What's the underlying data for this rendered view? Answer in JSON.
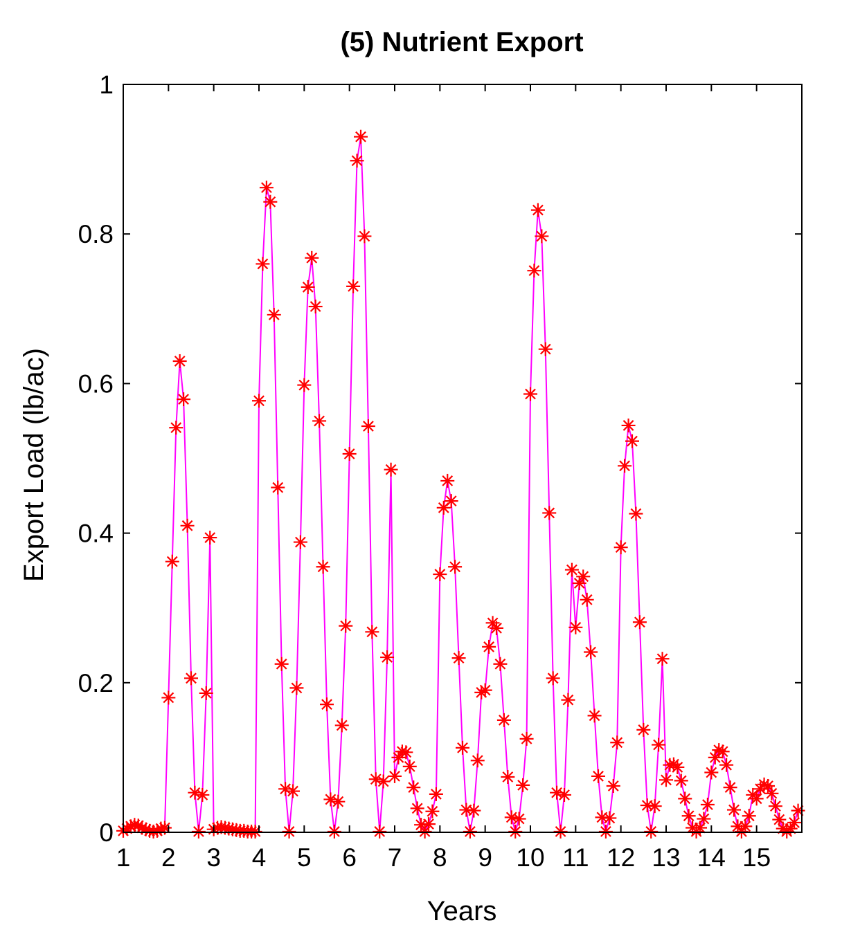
{
  "chart_data": {
    "type": "line",
    "title": "(5) Nutrient Export",
    "xlabel": "Years",
    "ylabel": "Export Load (lb/ac)",
    "xlim": [
      1,
      16
    ],
    "ylim": [
      0,
      1
    ],
    "x_ticks": [
      1,
      2,
      3,
      4,
      5,
      6,
      7,
      8,
      9,
      10,
      11,
      12,
      13,
      14,
      15
    ],
    "x_tick_labels": [
      "1",
      "2",
      "3",
      "4",
      "5",
      "6",
      "7",
      "8",
      "9",
      "10",
      "11",
      "12",
      "13",
      "14",
      "15"
    ],
    "y_ticks": [
      0,
      0.2,
      0.4,
      0.6,
      0.8,
      1
    ],
    "y_tick_labels": [
      "0",
      "0.2",
      "0.4",
      "0.6",
      "0.8",
      "1"
    ],
    "grid": false,
    "line_color": "#ff00ff",
    "marker_color": "#ff0000",
    "marker": "asterisk",
    "series": [
      {
        "x": [
          1.0,
          1.083,
          1.167,
          1.25,
          1.333,
          1.417,
          1.5,
          1.583,
          1.667,
          1.75,
          1.833,
          1.917,
          2.0,
          2.083,
          2.167,
          2.25,
          2.333,
          2.417,
          2.5,
          2.583,
          2.667,
          2.75,
          2.833,
          2.917,
          3.0,
          3.083,
          3.167,
          3.25,
          3.333,
          3.417,
          3.5,
          3.583,
          3.667,
          3.75,
          3.833,
          3.917,
          4.0,
          4.083,
          4.167,
          4.25,
          4.333,
          4.417,
          4.5,
          4.583,
          4.667,
          4.75,
          4.833,
          4.917,
          5.0,
          5.083,
          5.167,
          5.25,
          5.333,
          5.417,
          5.5,
          5.583,
          5.667,
          5.75,
          5.833,
          5.917,
          6.0,
          6.083,
          6.167,
          6.25,
          6.333,
          6.417,
          6.5,
          6.583,
          6.667,
          6.75,
          6.833,
          6.917,
          7.0,
          7.083,
          7.167,
          7.25,
          7.333,
          7.417,
          7.5,
          7.583,
          7.667,
          7.75,
          7.833,
          7.917,
          8.0,
          8.083,
          8.167,
          8.25,
          8.333,
          8.417,
          8.5,
          8.583,
          8.667,
          8.75,
          8.833,
          8.917,
          9.0,
          9.083,
          9.167,
          9.25,
          9.333,
          9.417,
          9.5,
          9.583,
          9.667,
          9.75,
          9.833,
          9.917,
          10.0,
          10.083,
          10.167,
          10.25,
          10.333,
          10.417,
          10.5,
          10.583,
          10.667,
          10.75,
          10.833,
          10.917,
          11.0,
          11.083,
          11.167,
          11.25,
          11.333,
          11.417,
          11.5,
          11.583,
          11.667,
          11.75,
          11.833,
          11.917,
          12.0,
          12.083,
          12.167,
          12.25,
          12.333,
          12.417,
          12.5,
          12.583,
          12.667,
          12.75,
          12.833,
          12.917,
          13.0,
          13.083,
          13.167,
          13.25,
          13.333,
          13.417,
          13.5,
          13.583,
          13.667,
          13.75,
          13.833,
          13.917,
          14.0,
          14.083,
          14.167,
          14.25,
          14.333,
          14.417,
          14.5,
          14.583,
          14.667,
          14.75,
          14.833,
          14.917,
          15.0,
          15.083,
          15.167,
          15.25,
          15.333,
          15.417,
          15.5,
          15.583,
          15.667,
          15.75,
          15.833,
          15.917
        ],
        "y": [
          0.002,
          0.005,
          0.008,
          0.01,
          0.009,
          0.006,
          0.004,
          0.002,
          0.001,
          0.002,
          0.005,
          0.006,
          0.18,
          0.362,
          0.541,
          0.63,
          0.579,
          0.41,
          0.206,
          0.053,
          0.001,
          0.05,
          0.186,
          0.394,
          0.004,
          0.006,
          0.007,
          0.006,
          0.005,
          0.004,
          0.003,
          0.002,
          0.002,
          0.001,
          0.001,
          0.001,
          0.577,
          0.76,
          0.862,
          0.843,
          0.692,
          0.461,
          0.225,
          0.058,
          0.001,
          0.055,
          0.193,
          0.388,
          0.598,
          0.729,
          0.768,
          0.703,
          0.55,
          0.355,
          0.171,
          0.044,
          0.001,
          0.041,
          0.143,
          0.276,
          0.506,
          0.73,
          0.898,
          0.93,
          0.797,
          0.543,
          0.268,
          0.071,
          0.001,
          0.068,
          0.234,
          0.485,
          0.075,
          0.1,
          0.108,
          0.107,
          0.088,
          0.06,
          0.032,
          0.01,
          0.001,
          0.011,
          0.028,
          0.051,
          0.345,
          0.434,
          0.47,
          0.443,
          0.355,
          0.233,
          0.113,
          0.03,
          0.001,
          0.029,
          0.096,
          0.187,
          0.19,
          0.248,
          0.28,
          0.273,
          0.225,
          0.15,
          0.074,
          0.02,
          0.001,
          0.018,
          0.063,
          0.125,
          0.586,
          0.751,
          0.832,
          0.797,
          0.646,
          0.427,
          0.206,
          0.053,
          0.001,
          0.05,
          0.177,
          0.351,
          0.274,
          0.333,
          0.342,
          0.311,
          0.241,
          0.156,
          0.075,
          0.02,
          0.001,
          0.019,
          0.062,
          0.12,
          0.381,
          0.49,
          0.544,
          0.523,
          0.426,
          0.281,
          0.137,
          0.036,
          0.001,
          0.035,
          0.117,
          0.232,
          0.07,
          0.09,
          0.091,
          0.087,
          0.069,
          0.045,
          0.022,
          0.006,
          0.001,
          0.006,
          0.018,
          0.037,
          0.08,
          0.1,
          0.11,
          0.108,
          0.09,
          0.06,
          0.03,
          0.008,
          0.001,
          0.008,
          0.022,
          0.05,
          0.045,
          0.058,
          0.064,
          0.062,
          0.052,
          0.035,
          0.017,
          0.005,
          0.001,
          0.005,
          0.013,
          0.029
        ]
      }
    ]
  }
}
